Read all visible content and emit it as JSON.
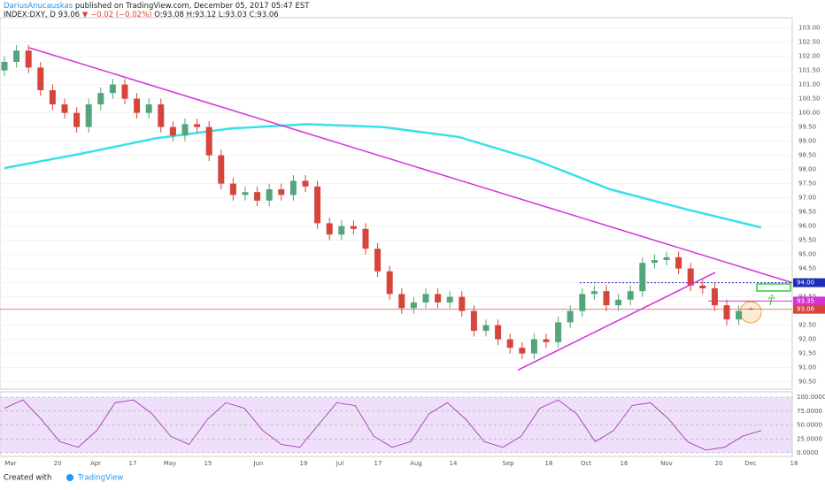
{
  "header": {
    "author": "DariusAnucauskas",
    "published": "published on TradingView.com, December 05, 2017 05:47 EST",
    "symbol": "INDEX:DXY, D",
    "last": "93.06",
    "change": "▼ −0.02 (−0.02%)",
    "ohlc": "O:93.08 H:93.12 L:93.03 C:93.06"
  },
  "footer": {
    "created": "Created with",
    "brand": "TradingView"
  },
  "chart_data": {
    "type": "candlestick",
    "x_labels": [
      "Mar",
      "20",
      "Apr",
      "17",
      "May",
      "15",
      "Jun",
      "19",
      "Jul",
      "17",
      "Aug",
      "14",
      "Sep",
      "18",
      "Oct",
      "16",
      "Nov",
      "20",
      "Dec",
      "18"
    ],
    "up_color": "#53a57a",
    "down_color": "#d6453b",
    "ohlc": [
      [
        101.5,
        102.0,
        101.3,
        101.8
      ],
      [
        101.8,
        102.4,
        101.6,
        102.2
      ],
      [
        102.2,
        102.4,
        101.4,
        101.6
      ],
      [
        101.6,
        101.8,
        100.6,
        100.8
      ],
      [
        100.8,
        101.0,
        100.1,
        100.3
      ],
      [
        100.3,
        100.5,
        99.8,
        100.0
      ],
      [
        100.0,
        100.2,
        99.3,
        99.5
      ],
      [
        99.5,
        100.5,
        99.3,
        100.3
      ],
      [
        100.3,
        100.9,
        100.1,
        100.7
      ],
      [
        100.7,
        101.2,
        100.5,
        101.0
      ],
      [
        101.0,
        101.2,
        100.3,
        100.5
      ],
      [
        100.5,
        100.7,
        99.8,
        100.0
      ],
      [
        100.0,
        100.5,
        99.8,
        100.3
      ],
      [
        100.3,
        100.5,
        99.3,
        99.5
      ],
      [
        99.5,
        99.7,
        99.0,
        99.2
      ],
      [
        99.2,
        99.8,
        99.0,
        99.6
      ],
      [
        99.6,
        99.8,
        99.3,
        99.5
      ],
      [
        99.5,
        99.7,
        98.3,
        98.5
      ],
      [
        98.5,
        98.7,
        97.3,
        97.5
      ],
      [
        97.5,
        97.7,
        96.9,
        97.1
      ],
      [
        97.1,
        97.4,
        96.9,
        97.2
      ],
      [
        97.2,
        97.4,
        96.7,
        96.9
      ],
      [
        96.9,
        97.5,
        96.7,
        97.3
      ],
      [
        97.3,
        97.5,
        96.9,
        97.1
      ],
      [
        97.1,
        97.8,
        96.9,
        97.6
      ],
      [
        97.6,
        97.8,
        97.2,
        97.4
      ],
      [
        97.4,
        97.6,
        95.9,
        96.1
      ],
      [
        96.1,
        96.3,
        95.5,
        95.7
      ],
      [
        95.7,
        96.2,
        95.5,
        96.0
      ],
      [
        96.0,
        96.2,
        95.7,
        95.9
      ],
      [
        95.9,
        96.1,
        95.0,
        95.2
      ],
      [
        95.2,
        95.4,
        94.2,
        94.4
      ],
      [
        94.4,
        94.6,
        93.4,
        93.6
      ],
      [
        93.6,
        93.8,
        92.9,
        93.1
      ],
      [
        93.1,
        93.5,
        92.9,
        93.3
      ],
      [
        93.3,
        93.8,
        93.1,
        93.6
      ],
      [
        93.6,
        93.8,
        93.1,
        93.3
      ],
      [
        93.3,
        93.7,
        93.1,
        93.5
      ],
      [
        93.5,
        93.7,
        92.8,
        93.0
      ],
      [
        93.0,
        93.2,
        92.1,
        92.3
      ],
      [
        92.3,
        92.7,
        92.1,
        92.5
      ],
      [
        92.5,
        92.7,
        91.8,
        92.0
      ],
      [
        92.0,
        92.2,
        91.5,
        91.7
      ],
      [
        91.7,
        91.9,
        91.3,
        91.5
      ],
      [
        91.5,
        92.2,
        91.3,
        92.0
      ],
      [
        92.0,
        92.2,
        91.7,
        91.9
      ],
      [
        91.9,
        92.8,
        91.7,
        92.6
      ],
      [
        92.6,
        93.2,
        92.4,
        93.0
      ],
      [
        93.0,
        93.8,
        92.8,
        93.6
      ],
      [
        93.6,
        93.9,
        93.4,
        93.7
      ],
      [
        93.7,
        93.9,
        93.0,
        93.2
      ],
      [
        93.2,
        93.6,
        93.0,
        93.4
      ],
      [
        93.4,
        93.9,
        93.2,
        93.7
      ],
      [
        93.7,
        94.9,
        93.5,
        94.7
      ],
      [
        94.7,
        95.0,
        94.5,
        94.8
      ],
      [
        94.8,
        95.1,
        94.6,
        94.9
      ],
      [
        94.9,
        95.1,
        94.3,
        94.5
      ],
      [
        94.5,
        94.7,
        93.7,
        93.9
      ],
      [
        93.9,
        94.1,
        93.6,
        93.8
      ],
      [
        93.8,
        94.0,
        93.0,
        93.2
      ],
      [
        93.2,
        93.4,
        92.5,
        92.7
      ],
      [
        92.7,
        93.2,
        92.5,
        93.0
      ],
      [
        93.08,
        93.12,
        93.03,
        93.06
      ]
    ],
    "moving_average": {
      "color": "#3ae0e8",
      "values": [
        98.05,
        98.55,
        99.1,
        99.45,
        99.6,
        99.5,
        99.15,
        98.35,
        97.3,
        96.6,
        95.95
      ]
    },
    "trendlines": [
      {
        "color": "#d633d6",
        "values": [
          102.3,
          94.0
        ]
      },
      {
        "color": "#d633d6",
        "values": [
          90.91,
          94.36
        ]
      }
    ],
    "price_levels": [
      {
        "value": 94.0,
        "label": "94.00",
        "color": "#1c2db5"
      },
      {
        "value": 93.35,
        "label": "93.35",
        "color": "#d633d6"
      },
      {
        "value": 93.06,
        "label": "93.06",
        "color": "#d6453b"
      }
    ],
    "ylim": [
      90.3,
      103.3
    ],
    "yticks": [
      {
        "value": 103.0,
        "label": "103.00"
      },
      {
        "value": 102.5,
        "label": "102.50"
      },
      {
        "value": 102.0,
        "label": "102.00"
      },
      {
        "value": 101.5,
        "label": "101.50"
      },
      {
        "value": 101.0,
        "label": "101.00"
      },
      {
        "value": 100.5,
        "label": "100.50"
      },
      {
        "value": 100.0,
        "label": "100.00"
      },
      {
        "value": 99.5,
        "label": "99.50"
      },
      {
        "value": 99.0,
        "label": "99.00"
      },
      {
        "value": 98.5,
        "label": "98.50"
      },
      {
        "value": 98.0,
        "label": "98.00"
      },
      {
        "value": 97.5,
        "label": "97.50"
      },
      {
        "value": 97.0,
        "label": "97.00"
      },
      {
        "value": 96.5,
        "label": "96.50"
      },
      {
        "value": 96.0,
        "label": "96.00"
      },
      {
        "value": 95.5,
        "label": "95.50"
      },
      {
        "value": 95.0,
        "label": "95.00"
      },
      {
        "value": 94.5,
        "label": "94.50"
      },
      {
        "value": 94.0,
        "label": "94.00"
      },
      {
        "value": 93.5,
        "label": "93.50"
      },
      {
        "value": 93.0,
        "label": "93.00"
      },
      {
        "value": 92.5,
        "label": "92.50"
      },
      {
        "value": 92.0,
        "label": "92.00"
      },
      {
        "value": 91.5,
        "label": "91.50"
      },
      {
        "value": 91.0,
        "label": "91.00"
      },
      {
        "value": 90.5,
        "label": "90.50"
      }
    ],
    "oscillator": {
      "color": "#9c27b0",
      "values": [
        80,
        95,
        60,
        20,
        10,
        40,
        90,
        95,
        70,
        30,
        15,
        60,
        90,
        80,
        40,
        15,
        10,
        50,
        90,
        85,
        30,
        10,
        20,
        70,
        90,
        60,
        20,
        10,
        30,
        80,
        95,
        70,
        20,
        40,
        85,
        90,
        60,
        20,
        5,
        10,
        30,
        40
      ],
      "ylim": [
        0,
        100
      ],
      "yticks": [
        {
          "value": 100,
          "label": "100.0000"
        },
        {
          "value": 75,
          "label": "75.0000"
        },
        {
          "value": 50,
          "label": "50.0000"
        },
        {
          "value": 25,
          "label": "25.0000"
        },
        {
          "value": 0,
          "label": "0.0000"
        }
      ]
    }
  }
}
